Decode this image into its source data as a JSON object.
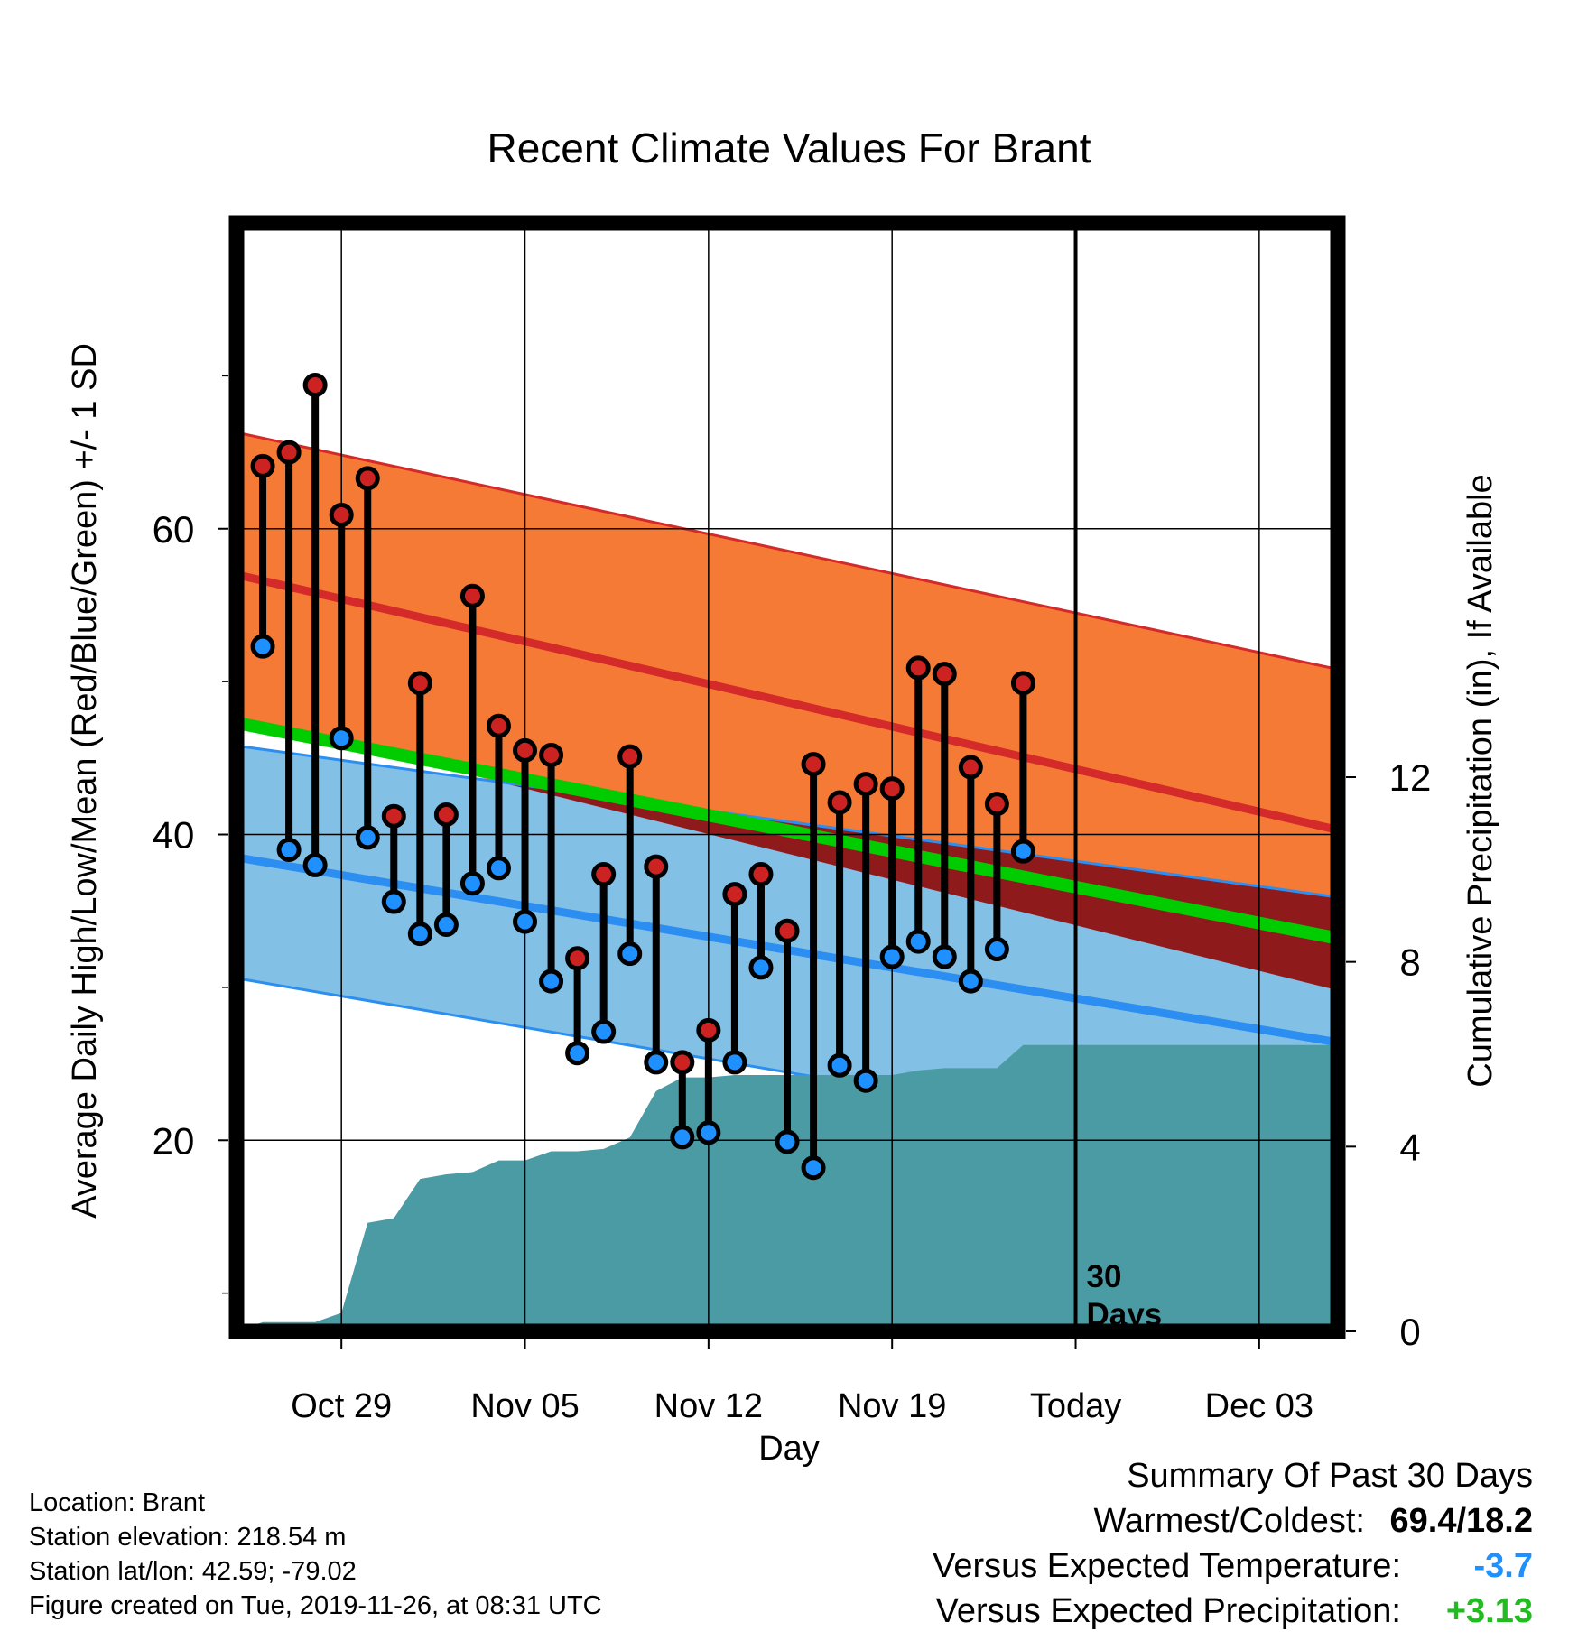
{
  "chart_data": {
    "type": "line",
    "title": "Recent Climate Values For Brant",
    "xlabel": "Day",
    "ylabel": "Average Daily High/Low/Mean (Red/Blue/Green) +/- 1 SD",
    "y2label": "Cumulative Precipitation (in), If Available",
    "ylim": [
      7.5,
      80
    ],
    "y2lim": [
      0,
      24
    ],
    "yticks": [
      20,
      40,
      60
    ],
    "y2ticks": [
      0,
      4,
      8,
      12
    ],
    "xdomain": [
      "2019-10-25",
      "2019-12-06"
    ],
    "xticks": [
      {
        "date": "2019-10-29",
        "label": "Oct 29"
      },
      {
        "date": "2019-11-05",
        "label": "Nov 05"
      },
      {
        "date": "2019-11-12",
        "label": "Nov 12"
      },
      {
        "date": "2019-11-19",
        "label": "Nov 19"
      },
      {
        "date": "2019-11-26",
        "label": "Today"
      },
      {
        "date": "2019-12-03",
        "label": "Dec 03"
      }
    ],
    "grid": true,
    "today": "2019-11-26",
    "today_label_line1": "30",
    "today_label_line2": "Days",
    "normals": {
      "x": [
        "2019-10-25",
        "2019-12-06"
      ],
      "high_mean": [
        57.0,
        40.3
      ],
      "high_upper": [
        66.3,
        50.8
      ],
      "high_lower": [
        47.7,
        29.8
      ],
      "low_mean": [
        38.5,
        26.4
      ],
      "low_upper": [
        45.8,
        35.9
      ],
      "low_lower": [
        30.6,
        18.3
      ],
      "mean": [
        47.3,
        33.2
      ]
    },
    "colors": {
      "high_band": "#f47a35",
      "high_line": "#d42a2a",
      "low_band": "#82c0e6",
      "low_line": "#2b8ef0",
      "overlap": "#8f1a1c",
      "mean_line": "#00cc00",
      "precip": "#4a9ba4",
      "high_marker": "#cc2222",
      "low_marker": "#1e90ff",
      "warm_cold_text": "#000000",
      "temp_anomaly_text": "#1e90ff",
      "precip_anomaly_text": "#22bb22"
    },
    "observations": [
      {
        "date": "2019-10-26",
        "high": 64.1,
        "low": 52.3
      },
      {
        "date": "2019-10-27",
        "high": 65.0,
        "low": 39.0
      },
      {
        "date": "2019-10-28",
        "high": 69.4,
        "low": 38.0
      },
      {
        "date": "2019-10-29",
        "high": 60.9,
        "low": 46.3
      },
      {
        "date": "2019-10-30",
        "high": 63.3,
        "low": 39.8
      },
      {
        "date": "2019-10-31",
        "high": 41.2,
        "low": 35.6
      },
      {
        "date": "2019-11-01",
        "high": 49.9,
        "low": 33.5
      },
      {
        "date": "2019-11-02",
        "high": 41.3,
        "low": 34.1
      },
      {
        "date": "2019-11-03",
        "high": 55.6,
        "low": 36.8
      },
      {
        "date": "2019-11-04",
        "high": 47.1,
        "low": 37.8
      },
      {
        "date": "2019-11-05",
        "high": 45.5,
        "low": 34.3
      },
      {
        "date": "2019-11-06",
        "high": 45.2,
        "low": 30.4
      },
      {
        "date": "2019-11-07",
        "high": 31.9,
        "low": 25.7
      },
      {
        "date": "2019-11-08",
        "high": 37.4,
        "low": 27.1
      },
      {
        "date": "2019-11-09",
        "high": 45.1,
        "low": 32.2
      },
      {
        "date": "2019-11-10",
        "high": 37.9,
        "low": 25.1
      },
      {
        "date": "2019-11-11",
        "high": 25.1,
        "low": 20.2
      },
      {
        "date": "2019-11-12",
        "high": 27.2,
        "low": 20.5
      },
      {
        "date": "2019-11-13",
        "high": 36.1,
        "low": 25.1
      },
      {
        "date": "2019-11-14",
        "high": 37.4,
        "low": 31.3
      },
      {
        "date": "2019-11-15",
        "high": 33.7,
        "low": 19.9
      },
      {
        "date": "2019-11-16",
        "high": 44.6,
        "low": 18.2
      },
      {
        "date": "2019-11-17",
        "high": 42.1,
        "low": 24.9
      },
      {
        "date": "2019-11-18",
        "high": 43.3,
        "low": 23.9
      },
      {
        "date": "2019-11-19",
        "high": 43.0,
        "low": 32.0
      },
      {
        "date": "2019-11-20",
        "high": 50.9,
        "low": 33.0
      },
      {
        "date": "2019-11-21",
        "high": 50.5,
        "low": 32.0
      },
      {
        "date": "2019-11-22",
        "high": 44.4,
        "low": 30.4
      },
      {
        "date": "2019-11-23",
        "high": 42.0,
        "low": 32.5
      },
      {
        "date": "2019-11-24",
        "high": 49.9,
        "low": 38.9
      }
    ],
    "precipitation_cumulative": [
      {
        "date": "2019-10-25",
        "value": 0.0
      },
      {
        "date": "2019-10-26",
        "value": 0.2
      },
      {
        "date": "2019-10-27",
        "value": 0.2
      },
      {
        "date": "2019-10-28",
        "value": 0.2
      },
      {
        "date": "2019-10-29",
        "value": 0.4
      },
      {
        "date": "2019-10-30",
        "value": 2.35
      },
      {
        "date": "2019-10-31",
        "value": 2.45
      },
      {
        "date": "2019-11-01",
        "value": 3.3
      },
      {
        "date": "2019-11-02",
        "value": 3.4
      },
      {
        "date": "2019-11-03",
        "value": 3.45
      },
      {
        "date": "2019-11-04",
        "value": 3.7
      },
      {
        "date": "2019-11-05",
        "value": 3.7
      },
      {
        "date": "2019-11-06",
        "value": 3.9
      },
      {
        "date": "2019-11-07",
        "value": 3.9
      },
      {
        "date": "2019-11-08",
        "value": 3.95
      },
      {
        "date": "2019-11-09",
        "value": 4.2
      },
      {
        "date": "2019-11-10",
        "value": 5.2
      },
      {
        "date": "2019-11-11",
        "value": 5.5
      },
      {
        "date": "2019-11-12",
        "value": 5.5
      },
      {
        "date": "2019-11-13",
        "value": 5.55
      },
      {
        "date": "2019-11-14",
        "value": 5.55
      },
      {
        "date": "2019-11-15",
        "value": 5.55
      },
      {
        "date": "2019-11-16",
        "value": 5.55
      },
      {
        "date": "2019-11-17",
        "value": 5.55
      },
      {
        "date": "2019-11-18",
        "value": 5.55
      },
      {
        "date": "2019-11-19",
        "value": 5.55
      },
      {
        "date": "2019-11-20",
        "value": 5.65
      },
      {
        "date": "2019-11-21",
        "value": 5.7
      },
      {
        "date": "2019-11-22",
        "value": 5.7
      },
      {
        "date": "2019-11-23",
        "value": 5.7
      },
      {
        "date": "2019-11-24",
        "value": 6.2
      },
      {
        "date": "2019-12-06",
        "value": 6.2
      }
    ]
  },
  "info": {
    "location": "Location: Brant",
    "elevation": "Station elevation: 218.54 m",
    "latlon": "Station lat/lon: 42.59; -79.02",
    "created": "Figure created on Tue, 2019-11-26, at 08:31 UTC"
  },
  "summary": {
    "title": "Summary Of Past 30 Days",
    "warm_cold_label": "Warmest/Coldest:",
    "warm_cold_value": "69.4/18.2",
    "temp_label": "Versus Expected Temperature:",
    "temp_value": "-3.7",
    "precip_label": "Versus Expected Precipitation:",
    "precip_value": "+3.13"
  }
}
